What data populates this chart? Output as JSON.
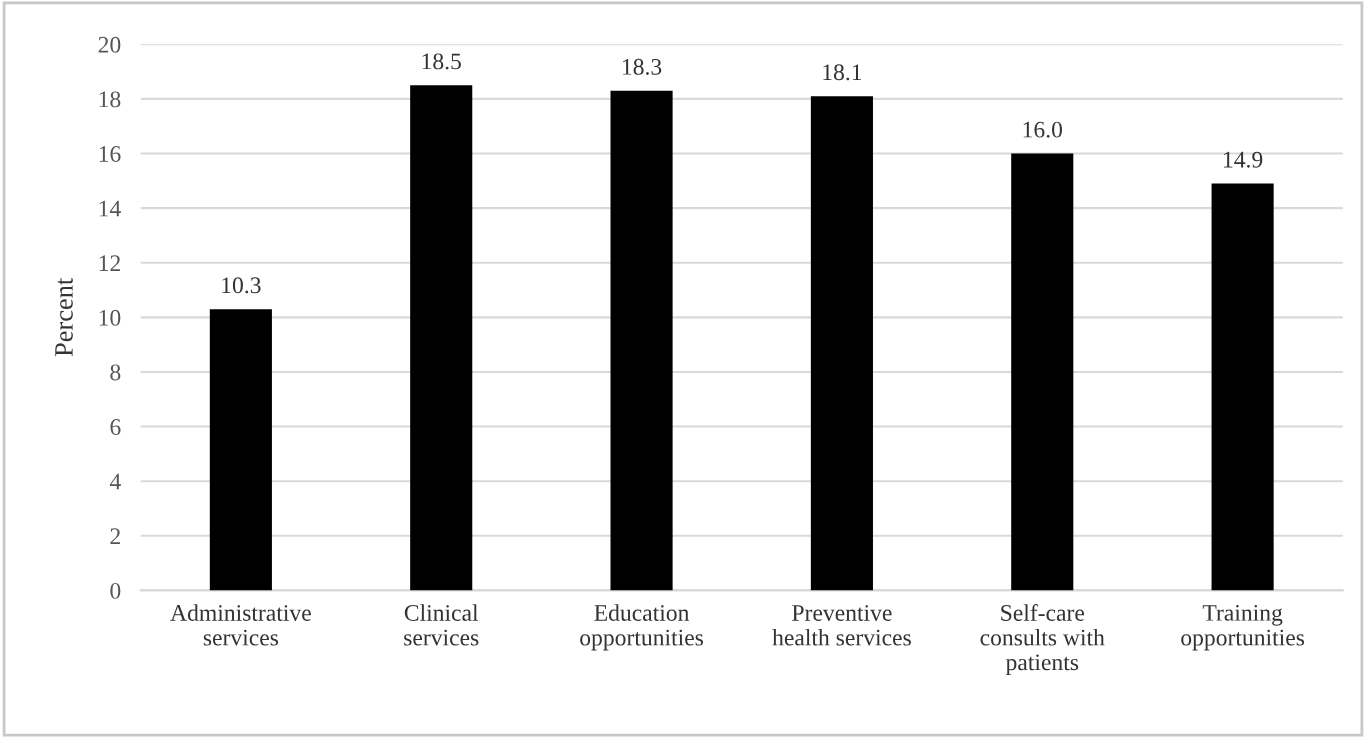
{
  "chart_data": {
    "type": "bar",
    "ylabel": "Percent",
    "categories": [
      "Administrative\nservices",
      "Clinical\nservices",
      "Education\nopportunities",
      "Preventive\nhealth services",
      "Self-care\nconsults with\npatients",
      "Training\nopportunities"
    ],
    "values": [
      10.3,
      18.5,
      18.3,
      18.1,
      16.0,
      14.9
    ],
    "color": "#000000",
    "ylim": [
      0,
      20
    ],
    "yticks": [
      0,
      2,
      4,
      6,
      8,
      10,
      12,
      14,
      16,
      18,
      20
    ],
    "value_labels": [
      "10.3",
      "18.5",
      "18.3",
      "18.1",
      "16.0",
      "14.9"
    ],
    "grid": "y"
  }
}
